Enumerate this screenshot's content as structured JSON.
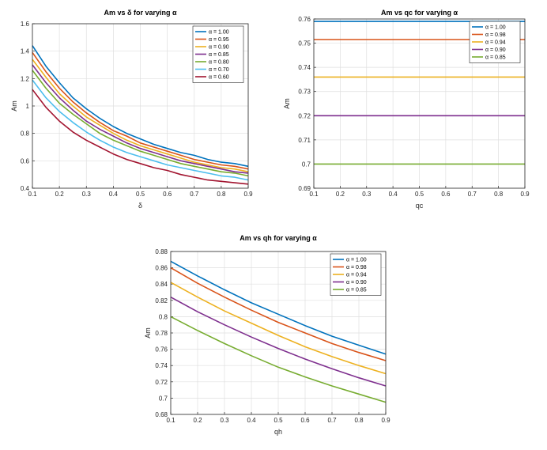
{
  "chart_data": [
    {
      "type": "line",
      "title": "Am vs δ for varying α",
      "xlabel": "δ",
      "ylabel": "Am",
      "xlim": [
        0.1,
        0.9
      ],
      "ylim": [
        0.4,
        1.6
      ],
      "xticks": [
        0.1,
        0.2,
        0.3,
        0.4,
        0.5,
        0.6,
        0.7,
        0.8,
        0.9
      ],
      "yticks": [
        0.4,
        0.6,
        0.8,
        1,
        1.2,
        1.4,
        1.6
      ],
      "legend_position": "top-right",
      "x": [
        0.1,
        0.15,
        0.2,
        0.25,
        0.3,
        0.35,
        0.4,
        0.45,
        0.5,
        0.55,
        0.6,
        0.65,
        0.7,
        0.75,
        0.8,
        0.85,
        0.9
      ],
      "series": [
        {
          "name": "α = 1.00",
          "color": "#0072BD",
          "values": [
            1.44,
            1.29,
            1.17,
            1.06,
            0.98,
            0.91,
            0.85,
            0.8,
            0.76,
            0.72,
            0.69,
            0.66,
            0.64,
            0.61,
            0.59,
            0.58,
            0.56
          ]
        },
        {
          "name": "α = 0.95",
          "color": "#D95319",
          "values": [
            1.39,
            1.25,
            1.13,
            1.03,
            0.95,
            0.88,
            0.82,
            0.78,
            0.73,
            0.7,
            0.67,
            0.64,
            0.61,
            0.59,
            0.57,
            0.56,
            0.54
          ]
        },
        {
          "name": "α = 0.90",
          "color": "#EDB120",
          "values": [
            1.34,
            1.21,
            1.09,
            1.0,
            0.92,
            0.86,
            0.8,
            0.75,
            0.71,
            0.68,
            0.65,
            0.62,
            0.59,
            0.57,
            0.55,
            0.54,
            0.52
          ]
        },
        {
          "name": "α = 0.85",
          "color": "#7E2F8E",
          "values": [
            1.3,
            1.17,
            1.06,
            0.97,
            0.89,
            0.83,
            0.78,
            0.73,
            0.69,
            0.66,
            0.63,
            0.6,
            0.58,
            0.56,
            0.54,
            0.52,
            0.51
          ]
        },
        {
          "name": "α = 0.80",
          "color": "#77AC30",
          "values": [
            1.26,
            1.13,
            1.02,
            0.94,
            0.87,
            0.8,
            0.75,
            0.71,
            0.67,
            0.64,
            0.61,
            0.58,
            0.56,
            0.54,
            0.52,
            0.51,
            0.49
          ]
        },
        {
          "name": "α = 0.70",
          "color": "#4DBEEE",
          "values": [
            1.19,
            1.06,
            0.96,
            0.88,
            0.81,
            0.75,
            0.7,
            0.66,
            0.63,
            0.6,
            0.57,
            0.55,
            0.53,
            0.51,
            0.49,
            0.48,
            0.46
          ]
        },
        {
          "name": "α = 0.60",
          "color": "#A2142F",
          "values": [
            1.12,
            0.99,
            0.89,
            0.81,
            0.75,
            0.7,
            0.65,
            0.61,
            0.58,
            0.55,
            0.53,
            0.5,
            0.48,
            0.46,
            0.45,
            0.44,
            0.43
          ]
        }
      ]
    },
    {
      "type": "line",
      "title": "Am vs qc for varying α",
      "xlabel": "qc",
      "ylabel": "Am",
      "xlim": [
        0.1,
        0.9
      ],
      "ylim": [
        0.69,
        0.76
      ],
      "xticks": [
        0.1,
        0.2,
        0.3,
        0.4,
        0.5,
        0.6,
        0.7,
        0.8,
        0.9
      ],
      "yticks": [
        0.69,
        0.7,
        0.71,
        0.72,
        0.73,
        0.74,
        0.75,
        0.76
      ],
      "legend_position": "top-right",
      "x": [
        0.1,
        0.9
      ],
      "series": [
        {
          "name": "α = 1.00",
          "color": "#0072BD",
          "values": [
            0.759,
            0.759
          ]
        },
        {
          "name": "α = 0.98",
          "color": "#D95319",
          "values": [
            0.7515,
            0.7515
          ]
        },
        {
          "name": "α = 0.94",
          "color": "#EDB120",
          "values": [
            0.736,
            0.736
          ]
        },
        {
          "name": "α = 0.90",
          "color": "#7E2F8E",
          "values": [
            0.72,
            0.72
          ]
        },
        {
          "name": "α = 0.85",
          "color": "#77AC30",
          "values": [
            0.7,
            0.7
          ]
        }
      ]
    },
    {
      "type": "line",
      "title": "Am vs qh for varying α",
      "xlabel": "qh",
      "ylabel": "Am",
      "xlim": [
        0.1,
        0.9
      ],
      "ylim": [
        0.68,
        0.88
      ],
      "xticks": [
        0.1,
        0.2,
        0.3,
        0.4,
        0.5,
        0.6,
        0.7,
        0.8,
        0.9
      ],
      "yticks": [
        0.68,
        0.7,
        0.72,
        0.74,
        0.76,
        0.78,
        0.8,
        0.82,
        0.84,
        0.86,
        0.88
      ],
      "legend_position": "top-right",
      "x": [
        0.1,
        0.2,
        0.3,
        0.4,
        0.5,
        0.6,
        0.7,
        0.8,
        0.9
      ],
      "series": [
        {
          "name": "α = 1.00",
          "color": "#0072BD",
          "values": [
            0.868,
            0.85,
            0.833,
            0.817,
            0.803,
            0.789,
            0.776,
            0.765,
            0.754
          ]
        },
        {
          "name": "α = 0.98",
          "color": "#D95319",
          "values": [
            0.86,
            0.841,
            0.824,
            0.808,
            0.793,
            0.78,
            0.767,
            0.756,
            0.746
          ]
        },
        {
          "name": "α = 0.94",
          "color": "#EDB120",
          "values": [
            0.842,
            0.824,
            0.807,
            0.792,
            0.777,
            0.763,
            0.751,
            0.74,
            0.73
          ]
        },
        {
          "name": "α = 0.90",
          "color": "#7E2F8E",
          "values": [
            0.824,
            0.806,
            0.79,
            0.775,
            0.761,
            0.748,
            0.736,
            0.725,
            0.715
          ]
        },
        {
          "name": "α = 0.85",
          "color": "#77AC30",
          "values": [
            0.8,
            0.783,
            0.767,
            0.752,
            0.738,
            0.726,
            0.715,
            0.705,
            0.695
          ]
        }
      ]
    }
  ]
}
